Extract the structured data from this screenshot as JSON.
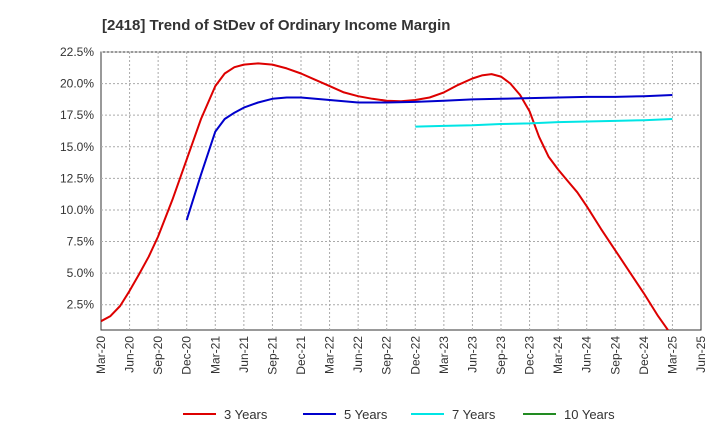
{
  "chart_data": {
    "type": "line",
    "title": "[2418]  Trend of StDev of Ordinary Income Margin",
    "xlabel": "",
    "ylabel": "",
    "x_ticks": [
      "Mar-20",
      "Jun-20",
      "Sep-20",
      "Dec-20",
      "Mar-21",
      "Jun-21",
      "Sep-21",
      "Dec-21",
      "Mar-22",
      "Jun-22",
      "Sep-22",
      "Dec-22",
      "Mar-23",
      "Jun-23",
      "Sep-23",
      "Dec-23",
      "Mar-24",
      "Jun-24",
      "Sep-24",
      "Dec-24",
      "Mar-25",
      "Jun-25"
    ],
    "y_ticks": [
      "2.5%",
      "5.0%",
      "7.5%",
      "10.0%",
      "12.5%",
      "15.0%",
      "17.5%",
      "20.0%",
      "22.5%"
    ],
    "y_tick_values": [
      2.5,
      5,
      7.5,
      10,
      12.5,
      15,
      17.5,
      20,
      22.5
    ],
    "ylim": [
      0.5,
      22.5
    ],
    "grid": true,
    "legend_position": "bottom",
    "series": [
      {
        "name": "3 Years",
        "color": "#dd0000",
        "x": [
          0,
          0.33,
          0.67,
          1,
          1.33,
          1.67,
          2,
          2.5,
          3,
          3.5,
          4,
          4.33,
          4.67,
          5,
          5.5,
          6,
          6.5,
          7,
          7.5,
          8,
          8.5,
          9,
          9.5,
          10,
          10.5,
          11,
          11.5,
          12,
          12.5,
          13,
          13.33,
          13.67,
          14,
          14.33,
          14.67,
          15,
          15.33,
          15.67,
          16,
          16.33,
          16.67,
          17,
          17.5,
          18,
          18.5,
          19,
          19.5,
          20
        ],
        "y": [
          1.2,
          1.6,
          2.4,
          3.6,
          4.9,
          6.3,
          7.9,
          10.8,
          14.0,
          17.2,
          19.8,
          20.8,
          21.3,
          21.5,
          21.6,
          21.5,
          21.2,
          20.8,
          20.3,
          19.8,
          19.3,
          19.0,
          18.8,
          18.65,
          18.6,
          18.7,
          18.9,
          19.3,
          19.9,
          20.4,
          20.65,
          20.75,
          20.55,
          20.0,
          19.1,
          17.8,
          15.8,
          14.2,
          13.2,
          12.3,
          11.4,
          10.3,
          8.5,
          6.8,
          5.1,
          3.4,
          1.6,
          0
        ],
        "y_fix_note": ""
      },
      {
        "name": "5 Years",
        "color": "#0000cc",
        "x": [
          3,
          3.5,
          4,
          4.33,
          4.67,
          5,
          5.5,
          6,
          6.5,
          7,
          7.5,
          8,
          9,
          10,
          11,
          12,
          13,
          14,
          15,
          16,
          17,
          18,
          19,
          20
        ],
        "y": [
          9.2,
          12.8,
          16.2,
          17.2,
          17.7,
          18.1,
          18.5,
          18.8,
          18.9,
          18.9,
          18.8,
          18.7,
          18.5,
          18.5,
          18.55,
          18.65,
          18.75,
          18.8,
          18.85,
          18.9,
          18.95,
          18.95,
          19.0,
          19.1
        ]
      },
      {
        "name": "7 Years",
        "color": "#00e5e5",
        "x": [
          11,
          12,
          13,
          14,
          15,
          16,
          17,
          18,
          19,
          20
        ],
        "y": [
          16.6,
          16.65,
          16.7,
          16.8,
          16.85,
          16.95,
          17.0,
          17.05,
          17.1,
          17.2
        ]
      },
      {
        "name": "10 Years",
        "color": "#228b22",
        "x": [],
        "y": []
      }
    ]
  }
}
